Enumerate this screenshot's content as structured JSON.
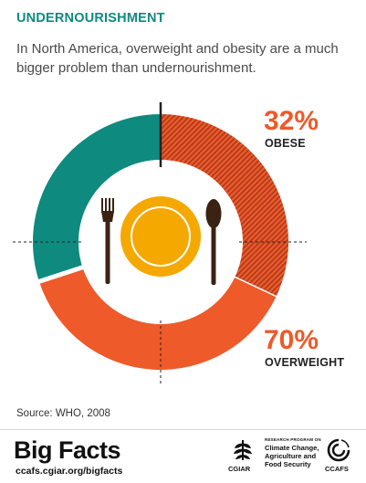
{
  "header": {
    "title": "UNDERNOURISHMENT",
    "subtitle": "In North America, overweight and obesity are a much bigger problem than undernourishment."
  },
  "chart_data": {
    "type": "pie",
    "variant": "donut",
    "slices": [
      {
        "label": "OBESE",
        "value": 32,
        "display": "32%",
        "color": "#e8542c",
        "pattern": "hatched"
      },
      {
        "label": "OVERWEIGHT",
        "value": 70,
        "display": "70%",
        "color": "#ee5a2a",
        "pattern": "solid",
        "includes": "OBESE"
      },
      {
        "label": "",
        "value": 30,
        "color": "#0f8a7f",
        "pattern": "solid"
      }
    ],
    "center_icon": "plate-fork-spoon-icon"
  },
  "footer": {
    "source": "Source: WHO, 2008",
    "brand": "Big Facts",
    "url": "ccafs.cgiar.org/bigfacts",
    "cgiar_label": "CGIAR",
    "program_small": "RESEARCH PROGRAM ON",
    "program_name": "Climate Change, Agriculture and Food Security",
    "ccafs_label": "CCAFS"
  },
  "colors": {
    "title": "#0f8a7f",
    "teal": "#0f8a7f",
    "orange": "#ee5a2a",
    "orange_dark": "#b83a1b",
    "plate": "#f5a800",
    "utensils": "#3b2314"
  }
}
